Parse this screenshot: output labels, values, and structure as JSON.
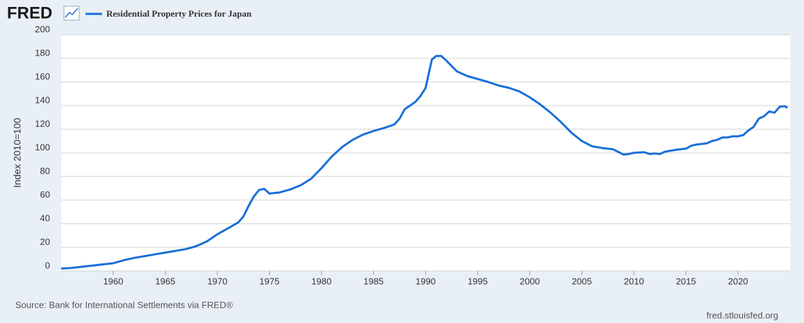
{
  "chart_data": {
    "type": "line",
    "logo": "FRED",
    "title": "Residential Property Prices for Japan",
    "ylabel": "Index 2010=100",
    "source": "Source: Bank for International Settlements via FRED®",
    "url": "fred.stlouisfed.org",
    "xlim": [
      1955,
      2025
    ],
    "ylim": [
      0,
      200
    ],
    "xticks": [
      1960,
      1965,
      1970,
      1975,
      1980,
      1985,
      1990,
      1995,
      2000,
      2005,
      2010,
      2015,
      2020
    ],
    "yticks": [
      0,
      20,
      40,
      60,
      80,
      100,
      120,
      140,
      160,
      180,
      200
    ],
    "grid": true,
    "series": [
      {
        "name": "Residential Property Prices for Japan",
        "color": "#1a6fd8",
        "x": [
          1955,
          1956,
          1957,
          1958,
          1959,
          1960,
          1961,
          1962,
          1963,
          1964,
          1965,
          1966,
          1967,
          1968,
          1969,
          1970,
          1971,
          1972,
          1972.5,
          1973,
          1973.5,
          1974,
          1974.5,
          1975,
          1976,
          1977,
          1978,
          1979,
          1980,
          1981,
          1982,
          1983,
          1984,
          1985,
          1986,
          1987,
          1987.5,
          1988,
          1989,
          1989.5,
          1990,
          1990.6,
          1991,
          1991.5,
          1992,
          1993,
          1994,
          1995,
          1996,
          1997,
          1998,
          1999,
          2000,
          2001,
          2002,
          2003,
          2004,
          2005,
          2006,
          2007,
          2008,
          2009,
          2009.5,
          2010,
          2011,
          2011.5,
          2012,
          2012.5,
          2013,
          2014,
          2015,
          2015.5,
          2016,
          2017,
          2017.5,
          2018,
          2018.5,
          2019,
          2019.5,
          2020,
          2020.5,
          2021,
          2021.5,
          2022,
          2022.5,
          2023,
          2023.5,
          2024,
          2024.5,
          2024.75
        ],
        "values": [
          2,
          2.5,
          3.5,
          4.5,
          5.5,
          6.5,
          9,
          11,
          12.5,
          14,
          15.5,
          17,
          18.5,
          21,
          25,
          31,
          36,
          41,
          46,
          55,
          63,
          68.5,
          69.5,
          65.5,
          66.5,
          69,
          72.5,
          78,
          87,
          97,
          105,
          111,
          115.5,
          118.5,
          121,
          124,
          129,
          137,
          143,
          148,
          155,
          179,
          182,
          182,
          178,
          169,
          165,
          162.5,
          160,
          157,
          155,
          152,
          147,
          141,
          134,
          126,
          117,
          110,
          105.5,
          104,
          103,
          98.5,
          99,
          100,
          100.5,
          99,
          99.5,
          99,
          101,
          102.5,
          103.5,
          106,
          107,
          108,
          110,
          111,
          113,
          113,
          114,
          114,
          115,
          119,
          122,
          129,
          131,
          135,
          134,
          139,
          139.5,
          138
        ]
      }
    ]
  }
}
